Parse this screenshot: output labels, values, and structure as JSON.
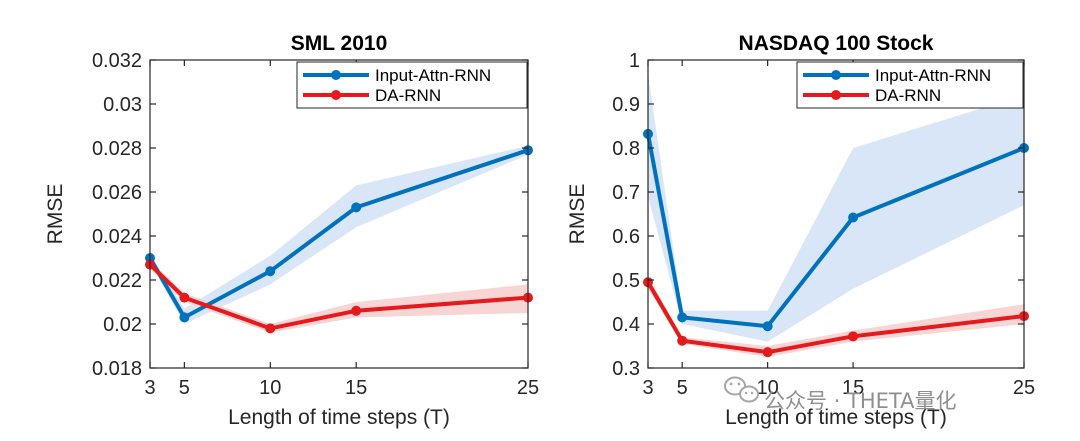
{
  "chart_data": [
    {
      "type": "line",
      "title": "SML 2010",
      "xlabel": "Length of time steps (T)",
      "ylabel": "RMSE",
      "x": [
        3,
        5,
        10,
        15,
        25
      ],
      "xlim": [
        3,
        25
      ],
      "xticks": [
        3,
        5,
        10,
        15,
        25
      ],
      "ylim": [
        0.018,
        0.032
      ],
      "yticks": [
        0.018,
        0.02,
        0.022,
        0.024,
        0.026,
        0.028,
        0.03,
        0.032
      ],
      "ytick_labels": [
        "0.018",
        "0.02",
        "0.022",
        "0.024",
        "0.026",
        "0.028",
        "0.03",
        "0.032"
      ],
      "legend_position": "top-right",
      "series": [
        {
          "name": "Input-Attn-RNN",
          "color": "#0072bd",
          "band_color": "#d9e6f7",
          "values": [
            0.023,
            0.0203,
            0.0224,
            0.0253,
            0.0279
          ],
          "band_upper": [
            0.0232,
            0.0207,
            0.0231,
            0.0263,
            0.0281
          ],
          "band_lower": [
            0.0228,
            0.02,
            0.0218,
            0.0244,
            0.0277
          ]
        },
        {
          "name": "DA-RNN",
          "color": "#e41a1c",
          "band_color": "#f8d5d5",
          "values": [
            0.0227,
            0.0212,
            0.0198,
            0.0206,
            0.0212
          ],
          "band_upper": [
            0.0229,
            0.0214,
            0.02,
            0.021,
            0.0218
          ],
          "band_lower": [
            0.0225,
            0.021,
            0.0196,
            0.0203,
            0.0205
          ]
        }
      ]
    },
    {
      "type": "line",
      "title": "NASDAQ 100 Stock",
      "xlabel": "Length of time steps (T)",
      "ylabel": "RMSE",
      "x": [
        3,
        5,
        10,
        15,
        25
      ],
      "xlim": [
        3,
        25
      ],
      "xticks": [
        3,
        5,
        10,
        15,
        25
      ],
      "ylim": [
        0.3,
        1.0
      ],
      "yticks": [
        0.3,
        0.4,
        0.5,
        0.6,
        0.7,
        0.8,
        0.9,
        1.0
      ],
      "ytick_labels": [
        "0.3",
        "0.4",
        "0.5",
        "0.6",
        "0.7",
        "0.8",
        "0.9",
        "1"
      ],
      "legend_position": "top-right",
      "series": [
        {
          "name": "Input-Attn-RNN",
          "color": "#0072bd",
          "band_color": "#d9e6f7",
          "values": [
            0.832,
            0.415,
            0.395,
            0.642,
            0.8
          ],
          "band_upper": [
            0.97,
            0.43,
            0.43,
            0.8,
            0.92
          ],
          "band_lower": [
            0.69,
            0.4,
            0.36,
            0.48,
            0.67
          ]
        },
        {
          "name": "DA-RNN",
          "color": "#e41a1c",
          "band_color": "#f8d5d5",
          "values": [
            0.495,
            0.362,
            0.336,
            0.372,
            0.418
          ],
          "band_upper": [
            0.51,
            0.37,
            0.35,
            0.385,
            0.445
          ],
          "band_lower": [
            0.48,
            0.355,
            0.325,
            0.36,
            0.4
          ]
        }
      ]
    }
  ],
  "watermark": {
    "text": "公众号 · THETA量化"
  }
}
